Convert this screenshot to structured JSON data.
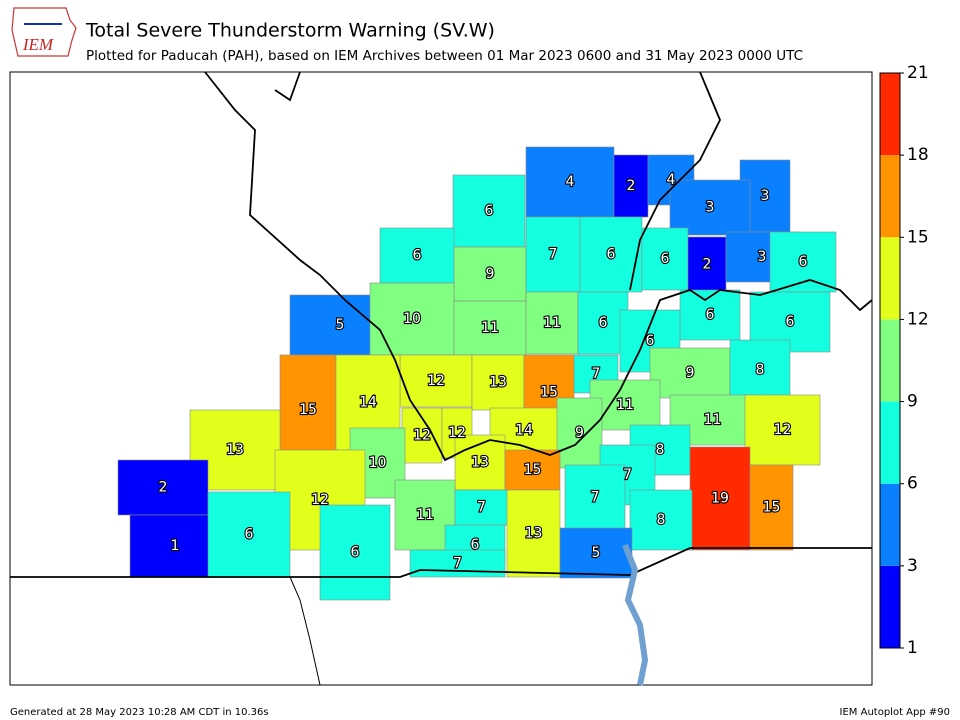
{
  "header": {
    "logo": "IEM",
    "title": "Total Severe Thunderstorm Warning (SV.W)",
    "subtitle": "Plotted for Paducah (PAH), based on IEM Archives  between 01 Mar 2023 0600 and 31 May 2023 0000 UTC"
  },
  "map": {
    "counties": [
      6,
      4,
      2,
      4,
      3,
      3,
      6,
      9,
      7,
      6,
      6,
      2,
      3,
      6,
      5,
      10,
      11,
      11,
      6,
      6,
      6,
      6,
      12,
      13,
      15,
      7,
      9,
      8,
      15,
      14,
      11,
      11,
      13,
      12,
      12,
      14,
      9,
      12,
      8,
      10,
      13,
      15,
      7,
      2,
      12,
      11,
      7,
      7,
      19,
      15,
      8,
      1,
      6,
      13,
      6,
      5,
      6,
      7
    ]
  },
  "colorbar": {
    "ticks": [
      1,
      3,
      6,
      9,
      12,
      15,
      18,
      21
    ],
    "colors": [
      "#0000ff",
      "#0a80ff",
      "#14ffe0",
      "#80ff80",
      "#e2ff1c",
      "#ff9400",
      "#ff2a00"
    ]
  },
  "footer": {
    "left": "Generated at 28 May 2023 10:28 AM CDT in 10.36s",
    "right": "IEM Autoplot App #90"
  }
}
